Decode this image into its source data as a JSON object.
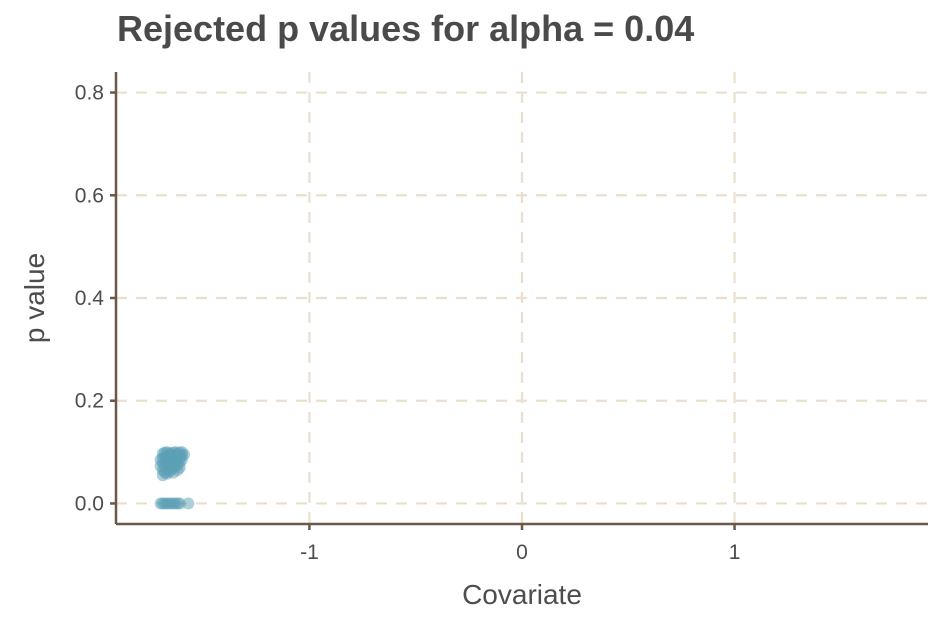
{
  "chart_data": {
    "type": "scatter",
    "title": "Rejected p values for alpha = 0.04",
    "xlabel": "Covariate",
    "ylabel": "p value",
    "xlim": [
      -1.91,
      1.91
    ],
    "ylim": [
      -0.04,
      0.84
    ],
    "x_ticks": [
      -1,
      0,
      1
    ],
    "x_tick_labels": [
      "-1",
      "0",
      "1"
    ],
    "y_ticks": [
      0.0,
      0.2,
      0.4,
      0.6,
      0.8
    ],
    "y_tick_labels": [
      "0.0",
      "0.2",
      "0.4",
      "0.6",
      "0.8"
    ],
    "grid": true,
    "legend": "none",
    "point_color": "#5b9fb5",
    "series": [
      {
        "points": [
          {
            "x": -1.7,
            "y": 0.0
          },
          {
            "x": -1.69,
            "y": 0.0
          },
          {
            "x": -1.68,
            "y": 0.0
          },
          {
            "x": -1.67,
            "y": 0.0
          },
          {
            "x": -1.66,
            "y": 0.0
          },
          {
            "x": -1.65,
            "y": 0.0
          },
          {
            "x": -1.64,
            "y": 0.0
          },
          {
            "x": -1.63,
            "y": 0.0
          },
          {
            "x": -1.62,
            "y": 0.0
          },
          {
            "x": -1.61,
            "y": 0.0
          },
          {
            "x": -1.57,
            "y": 0.0
          },
          {
            "x": -1.69,
            "y": 0.055
          },
          {
            "x": -1.68,
            "y": 0.06
          },
          {
            "x": -1.67,
            "y": 0.058
          },
          {
            "x": -1.69,
            "y": 0.065
          },
          {
            "x": -1.68,
            "y": 0.07
          },
          {
            "x": -1.67,
            "y": 0.072
          },
          {
            "x": -1.66,
            "y": 0.068
          },
          {
            "x": -1.65,
            "y": 0.066
          },
          {
            "x": -1.64,
            "y": 0.07
          },
          {
            "x": -1.63,
            "y": 0.072
          },
          {
            "x": -1.62,
            "y": 0.075
          },
          {
            "x": -1.69,
            "y": 0.078
          },
          {
            "x": -1.68,
            "y": 0.08
          },
          {
            "x": -1.67,
            "y": 0.082
          },
          {
            "x": -1.66,
            "y": 0.08
          },
          {
            "x": -1.65,
            "y": 0.078
          },
          {
            "x": -1.64,
            "y": 0.082
          },
          {
            "x": -1.63,
            "y": 0.085
          },
          {
            "x": -1.62,
            "y": 0.083
          },
          {
            "x": -1.61,
            "y": 0.08
          },
          {
            "x": -1.6,
            "y": 0.085
          },
          {
            "x": -1.69,
            "y": 0.088
          },
          {
            "x": -1.68,
            "y": 0.09
          },
          {
            "x": -1.67,
            "y": 0.092
          },
          {
            "x": -1.66,
            "y": 0.09
          },
          {
            "x": -1.65,
            "y": 0.088
          },
          {
            "x": -1.64,
            "y": 0.092
          },
          {
            "x": -1.63,
            "y": 0.094
          },
          {
            "x": -1.62,
            "y": 0.092
          },
          {
            "x": -1.61,
            "y": 0.09
          },
          {
            "x": -1.6,
            "y": 0.093
          },
          {
            "x": -1.59,
            "y": 0.095
          },
          {
            "x": -1.69,
            "y": 0.097
          },
          {
            "x": -1.68,
            "y": 0.099
          },
          {
            "x": -1.67,
            "y": 0.1
          },
          {
            "x": -1.66,
            "y": 0.098
          },
          {
            "x": -1.65,
            "y": 0.096
          },
          {
            "x": -1.64,
            "y": 0.099
          },
          {
            "x": -1.63,
            "y": 0.1
          },
          {
            "x": -1.62,
            "y": 0.097
          },
          {
            "x": -1.61,
            "y": 0.099
          },
          {
            "x": -1.6,
            "y": 0.1
          },
          {
            "x": -1.7,
            "y": 0.085
          },
          {
            "x": -1.7,
            "y": 0.073
          },
          {
            "x": -1.66,
            "y": 0.062
          },
          {
            "x": -1.64,
            "y": 0.06
          },
          {
            "x": -1.62,
            "y": 0.065
          },
          {
            "x": -1.61,
            "y": 0.07
          }
        ]
      }
    ]
  }
}
